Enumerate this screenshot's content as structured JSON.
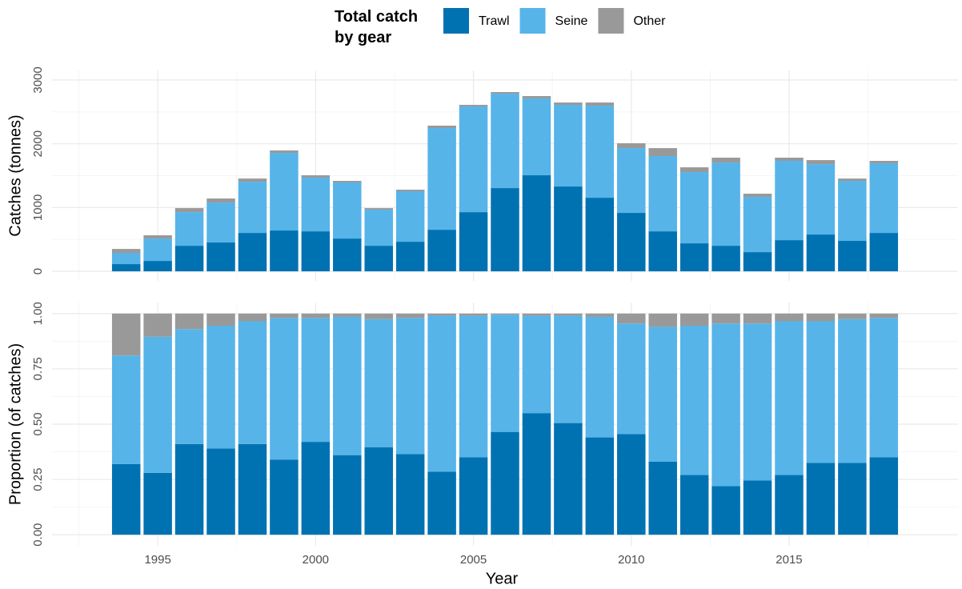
{
  "chart_data": [
    {
      "type": "stacked_bar",
      "y_label": "Catches (tonnes)",
      "legend_title": "Total catch by gear",
      "legend": "top",
      "grid": true,
      "x": [
        1994,
        1995,
        1996,
        1997,
        1998,
        1999,
        2000,
        2001,
        2002,
        2003,
        2004,
        2005,
        2006,
        2007,
        2008,
        2009,
        2010,
        2011,
        2012,
        2013,
        2014,
        2015,
        2016,
        2017,
        2018
      ],
      "xlim": [
        1991.65,
        2020.35
      ],
      "ylim": [
        -150,
        3150
      ],
      "yticks": [
        0,
        1000,
        2000,
        3000
      ],
      "series": [
        {
          "name": "Trawl",
          "color": "#0072b2",
          "values": [
            113,
            163,
            401,
            452,
            602,
            640,
            627,
            514,
            401,
            464,
            652,
            928,
            1305,
            1506,
            1330,
            1154,
            916,
            627,
            439,
            401,
            301,
            489,
            577,
            477,
            602
          ]
        },
        {
          "name": "Seine",
          "color": "#56b4e9",
          "values": [
            176,
            351,
            527,
            627,
            803,
            1217,
            841,
            879,
            565,
            791,
            1594,
            1657,
            1480,
            1204,
            1280,
            1443,
            1016,
            1180,
            1117,
            1305,
            866,
            1243,
            1104,
            941,
            1092
          ]
        },
        {
          "name": "Other",
          "color": "#999999",
          "values": [
            62,
            51,
            63,
            63,
            50,
            38,
            38,
            25,
            25,
            25,
            38,
            25,
            26,
            38,
            37,
            50,
            76,
            125,
            75,
            76,
            50,
            50,
            63,
            37,
            38
          ]
        }
      ]
    },
    {
      "type": "stacked_bar",
      "y_label": "Proportion (of catches)",
      "x_label": "Year",
      "grid": true,
      "x": [
        1994,
        1995,
        1996,
        1997,
        1998,
        1999,
        2000,
        2001,
        2002,
        2003,
        2004,
        2005,
        2006,
        2007,
        2008,
        2009,
        2010,
        2011,
        2012,
        2013,
        2014,
        2015,
        2016,
        2017,
        2018
      ],
      "xlim": [
        1991.65,
        2020.35
      ],
      "xticks": [
        1995,
        2000,
        2005,
        2010,
        2015
      ],
      "ylim": [
        -0.05,
        1.05
      ],
      "yticks": [
        {
          "value": 0,
          "label": "0.00"
        },
        {
          "value": 0.25,
          "label": "0.25"
        },
        {
          "value": 0.5,
          "label": "0.50"
        },
        {
          "value": 0.75,
          "label": "0.75"
        },
        {
          "value": 1,
          "label": "1.00"
        }
      ],
      "series": [
        {
          "color": "#0072b2",
          "values": [
            0.32,
            0.28,
            0.41,
            0.39,
            0.41,
            0.34,
            0.42,
            0.36,
            0.395,
            0.365,
            0.285,
            0.35,
            0.465,
            0.55,
            0.505,
            0.44,
            0.455,
            0.33,
            0.27,
            0.22,
            0.245,
            0.27,
            0.325,
            0.325,
            0.35
          ]
        },
        {
          "color": "#56b4e9",
          "values": [
            0.49,
            0.615,
            0.52,
            0.555,
            0.555,
            0.64,
            0.56,
            0.625,
            0.58,
            0.615,
            0.705,
            0.64,
            0.53,
            0.44,
            0.485,
            0.545,
            0.5,
            0.61,
            0.675,
            0.735,
            0.71,
            0.695,
            0.64,
            0.65,
            0.63
          ]
        },
        {
          "color": "#999999",
          "values": [
            0.19,
            0.105,
            0.07,
            0.055,
            0.035,
            0.02,
            0.02,
            0.015,
            0.025,
            0.02,
            0.01,
            0.01,
            0.005,
            0.01,
            0.01,
            0.015,
            0.045,
            0.06,
            0.055,
            0.045,
            0.045,
            0.035,
            0.035,
            0.025,
            0.02
          ]
        }
      ]
    }
  ]
}
